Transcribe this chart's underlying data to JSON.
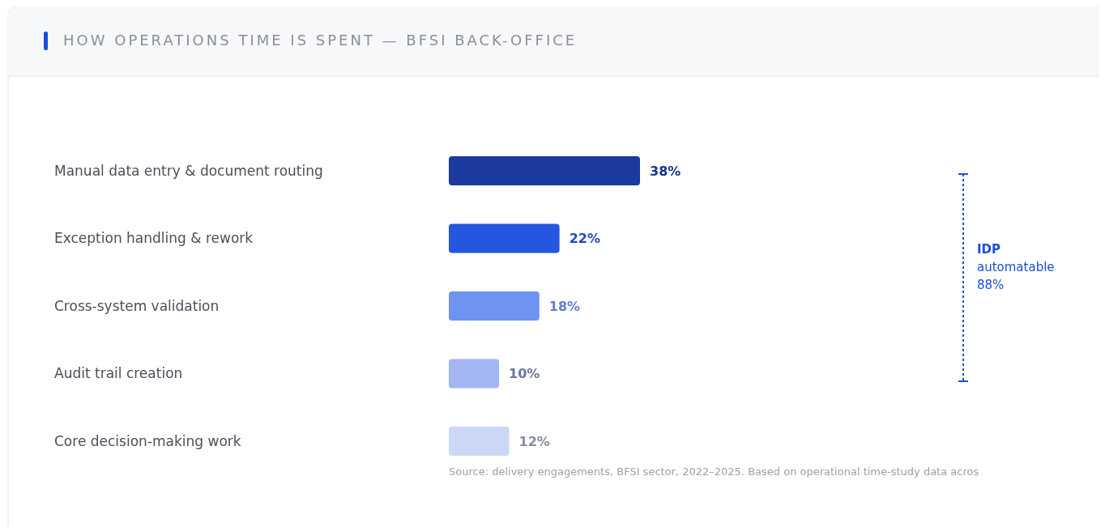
{
  "chart_data": {
    "type": "bar",
    "orientation": "horizontal",
    "title": "HOW OPERATIONS TIME IS SPENT — BFSI BACK-OFFICE",
    "categories": [
      "Manual data entry & document routing",
      "Exception handling & rework",
      "Cross-system validation",
      "Audit trail creation",
      "Core decision-making work"
    ],
    "values": [
      38,
      22,
      18,
      10,
      12
    ],
    "colors": [
      "#1a3a9e",
      "#2456e0",
      "#6f93f0",
      "#a3b5f2",
      "#cbd7f7"
    ],
    "value_labels": [
      "38%",
      "22%",
      "18%",
      "10%",
      "12%"
    ],
    "annotations": [
      "IDP automatable 88%",
      "Source: delivery engagements, BFSI sector, 2022–2025. Based on operational time-study data acros"
    ]
  }
}
